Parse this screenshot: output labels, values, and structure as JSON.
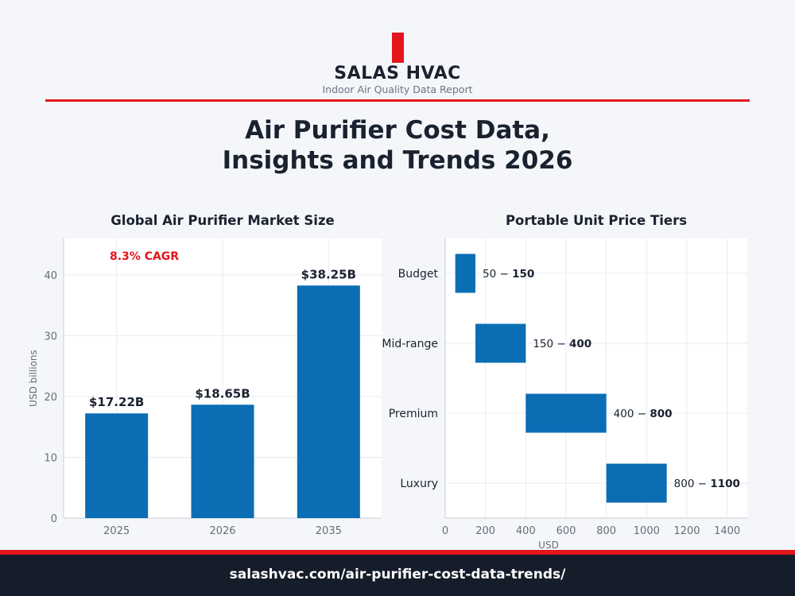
{
  "brand": {
    "name": "SALAS HVAC",
    "tagline": "Indoor Air Quality Data Report",
    "accent_color": "#e3151d"
  },
  "title": {
    "line1": "Air Purifier Cost Data,",
    "line2": "Insights and Trends 2026"
  },
  "footer": {
    "url": "salashvac.com/air-purifier-cost-data-trends/"
  },
  "chart_data": [
    {
      "type": "bar",
      "title": "Global Air Purifier Market Size",
      "categories": [
        "2025",
        "2026",
        "2035"
      ],
      "values": [
        17.22,
        18.65,
        38.25
      ],
      "data_labels": [
        "$17.22B",
        "$18.65B",
        "$38.25B"
      ],
      "annotation": "8.3% CAGR",
      "xlabel": "",
      "ylabel": "USD billions",
      "ylim": [
        0,
        46
      ],
      "yticks": [
        0,
        10,
        20,
        30,
        40
      ],
      "grid": true,
      "bar_color": "#0b6eb4",
      "annotation_color": "#e3151d"
    },
    {
      "type": "bar",
      "orientation": "horizontal-range",
      "title": "Portable Unit Price Tiers",
      "categories": [
        "Budget",
        "Mid-range",
        "Premium",
        "Luxury"
      ],
      "ranges": [
        [
          50,
          150
        ],
        [
          150,
          400
        ],
        [
          400,
          800
        ],
        [
          800,
          1100
        ]
      ],
      "data_labels": [
        {
          "low": "50",
          "high": "150"
        },
        {
          "low": "150",
          "high": "400"
        },
        {
          "low": "400",
          "high": "800"
        },
        {
          "low": "800",
          "high": "1100"
        }
      ],
      "xlabel": "USD",
      "ylabel": "",
      "xlim": [
        0,
        1500
      ],
      "xticks": [
        0,
        200,
        400,
        600,
        800,
        1000,
        1200,
        1400
      ],
      "grid": true,
      "bar_color": "#0b6eb4"
    }
  ]
}
